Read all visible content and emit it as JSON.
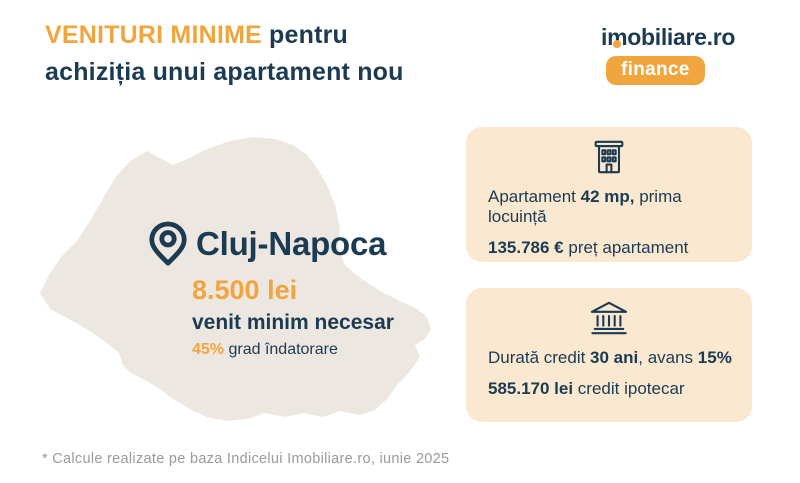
{
  "title": {
    "highlight": "VENITURI MINIME",
    "line1_rest": " pentru",
    "line2": "achiziția unui apartament nou"
  },
  "logo": {
    "brand_i": "i",
    "brand_m": "m",
    "brand_rest": "obiliare.ro",
    "badge": "finance"
  },
  "map_callout": {
    "city": "Cluj-Napoca",
    "income": "8.500 lei",
    "income_label": "venit minim necesar",
    "debt_ratio": "45%",
    "debt_ratio_label": " grad îndatorare"
  },
  "cards": [
    {
      "icon": "apartment-building-icon",
      "line1": [
        {
          "text": "Apartament ",
          "bold": false
        },
        {
          "text": "42 mp,",
          "bold": true
        },
        {
          "text": " prima locuință",
          "bold": false
        }
      ],
      "line2": [
        {
          "text": "135.786 €",
          "bold": true
        },
        {
          "text": " preț apartament",
          "bold": false
        }
      ]
    },
    {
      "icon": "bank-icon",
      "line1": [
        {
          "text": "Durată credit ",
          "bold": false
        },
        {
          "text": "30 ani",
          "bold": true
        },
        {
          "text": ", avans ",
          "bold": false
        },
        {
          "text": "15%",
          "bold": true
        }
      ],
      "line2": [
        {
          "text": "585.170 lei",
          "bold": true
        },
        {
          "text": " credit ipotecar",
          "bold": false
        }
      ]
    }
  ],
  "footnote": "* Calcule realizate pe baza Indicelui Imobiliare.ro, iunie 2025",
  "colors": {
    "orange": "#F1A53F",
    "navy": "#1B3B52",
    "card_background": "#FAE8D0",
    "map_fill": "#ECE7E0",
    "footnote_gray": "#9A9A9A",
    "background": "#FFFFFF"
  }
}
